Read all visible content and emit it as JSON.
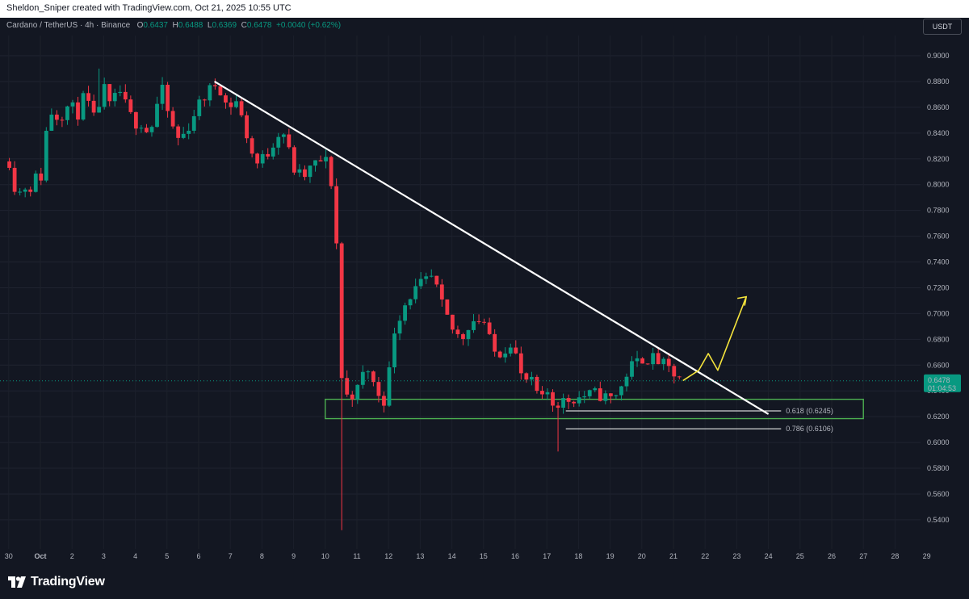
{
  "header": {
    "attribution": "Sheldon_Sniper created with TradingView.com, Oct 21, 2025 10:55 UTC"
  },
  "legend": {
    "symbol": "Cardano / TetherUS · 4h · Binance",
    "o_key": "O",
    "o_val": "0.6437",
    "h_key": "H",
    "h_val": "0.6488",
    "l_key": "L",
    "l_val": "0.6369",
    "c_key": "C",
    "c_val": "0.6478",
    "change": "+0.0040 (+0.62%)"
  },
  "currency_button": "USDT",
  "brand": "TradingView",
  "colors": {
    "up": "#089981",
    "down": "#f23645",
    "background": "#131722",
    "trendline": "#ffffff",
    "zone": "#4caf50",
    "arrow": "#f5e43c"
  },
  "chart_data": {
    "type": "candlestick",
    "title": "",
    "ylim": [
      0.53,
      0.915
    ],
    "y_ticks": [
      0.54,
      0.56,
      0.58,
      0.6,
      0.62,
      0.64,
      0.66,
      0.68,
      0.7,
      0.72,
      0.74,
      0.76,
      0.78,
      0.8,
      0.82,
      0.84,
      0.86,
      0.88,
      0.9
    ],
    "y_tick_labels": [
      "0.5400",
      "0.5600",
      "0.5800",
      "0.6000",
      "0.6200",
      "0.6400",
      "0.6600",
      "0.6800",
      "0.7000",
      "0.7200",
      "0.7400",
      "0.7600",
      "0.7800",
      "0.8000",
      "0.8200",
      "0.8400",
      "0.8600",
      "0.8800",
      "0.9000"
    ],
    "x_ticks": [
      {
        "label": "30",
        "day": -1.0
      },
      {
        "label": "Oct",
        "day": 0.0
      },
      {
        "label": "2",
        "day": 1.0
      },
      {
        "label": "3",
        "day": 2.0
      },
      {
        "label": "4",
        "day": 3.0
      },
      {
        "label": "5",
        "day": 4.0
      },
      {
        "label": "6",
        "day": 5.0
      },
      {
        "label": "7",
        "day": 6.0
      },
      {
        "label": "8",
        "day": 7.0
      },
      {
        "label": "9",
        "day": 8.0
      },
      {
        "label": "10",
        "day": 9.0
      },
      {
        "label": "11",
        "day": 10.0
      },
      {
        "label": "12",
        "day": 11.0
      },
      {
        "label": "13",
        "day": 12.0
      },
      {
        "label": "14",
        "day": 13.0
      },
      {
        "label": "15",
        "day": 14.0
      },
      {
        "label": "16",
        "day": 15.0
      },
      {
        "label": "17",
        "day": 16.0
      },
      {
        "label": "18",
        "day": 17.0
      },
      {
        "label": "19",
        "day": 18.0
      },
      {
        "label": "20",
        "day": 19.0
      },
      {
        "label": "21",
        "day": 20.0
      },
      {
        "label": "22",
        "day": 21.0
      },
      {
        "label": "23",
        "day": 22.0
      },
      {
        "label": "24",
        "day": 23.0
      },
      {
        "label": "25",
        "day": 24.0
      },
      {
        "label": "26",
        "day": 25.0
      },
      {
        "label": "27",
        "day": 26.0
      },
      {
        "label": "28",
        "day": 27.0
      },
      {
        "label": "29",
        "day": 28.0
      }
    ],
    "price_keypoints": [
      [
        -0.98,
        0.818
      ],
      [
        -0.85,
        0.8
      ],
      [
        -0.6,
        0.793
      ],
      [
        -0.4,
        0.802
      ],
      [
        -0.25,
        0.795
      ],
      [
        -0.1,
        0.81
      ],
      [
        0.05,
        0.805
      ],
      [
        0.25,
        0.858
      ],
      [
        0.6,
        0.852
      ],
      [
        0.9,
        0.862
      ],
      [
        1.2,
        0.855
      ],
      [
        1.4,
        0.87
      ],
      [
        1.7,
        0.85
      ],
      [
        2.0,
        0.875
      ],
      [
        2.2,
        0.86
      ],
      [
        2.5,
        0.873
      ],
      [
        2.8,
        0.855
      ],
      [
        3.0,
        0.848
      ],
      [
        3.2,
        0.848
      ],
      [
        3.4,
        0.84
      ],
      [
        3.6,
        0.85
      ],
      [
        3.8,
        0.878
      ],
      [
        4.0,
        0.858
      ],
      [
        4.3,
        0.835
      ],
      [
        4.6,
        0.84
      ],
      [
        4.9,
        0.858
      ],
      [
        5.3,
        0.872
      ],
      [
        5.6,
        0.88
      ],
      [
        5.9,
        0.86
      ],
      [
        6.2,
        0.865
      ],
      [
        6.5,
        0.84
      ],
      [
        6.8,
        0.815
      ],
      [
        7.2,
        0.825
      ],
      [
        7.5,
        0.84
      ],
      [
        7.7,
        0.84
      ],
      [
        8.0,
        0.812
      ],
      [
        8.3,
        0.805
      ],
      [
        8.6,
        0.815
      ],
      [
        9.0,
        0.82
      ],
      [
        9.2,
        0.8
      ],
      [
        9.35,
        0.757
      ],
      [
        9.5,
        0.652
      ],
      [
        9.7,
        0.635
      ],
      [
        10.0,
        0.64
      ],
      [
        10.3,
        0.66
      ],
      [
        10.6,
        0.64
      ],
      [
        10.9,
        0.632
      ],
      [
        11.2,
        0.69
      ],
      [
        11.6,
        0.712
      ],
      [
        12.0,
        0.722
      ],
      [
        12.4,
        0.728
      ],
      [
        12.7,
        0.705
      ],
      [
        13.0,
        0.688
      ],
      [
        13.3,
        0.68
      ],
      [
        13.6,
        0.695
      ],
      [
        14.0,
        0.695
      ],
      [
        14.3,
        0.67
      ],
      [
        14.6,
        0.67
      ],
      [
        14.9,
        0.68
      ],
      [
        15.2,
        0.65
      ],
      [
        15.6,
        0.645
      ],
      [
        15.8,
        0.63
      ],
      [
        16.0,
        0.64
      ],
      [
        16.2,
        0.63
      ],
      [
        16.5,
        0.632
      ],
      [
        17.0,
        0.635
      ],
      [
        17.5,
        0.638
      ],
      [
        18.0,
        0.634
      ],
      [
        18.3,
        0.64
      ],
      [
        18.6,
        0.658
      ],
      [
        19.0,
        0.665
      ],
      [
        19.4,
        0.665
      ],
      [
        19.8,
        0.658
      ],
      [
        20.1,
        0.65
      ],
      [
        20.3,
        0.648
      ]
    ],
    "last_price": "0.6478",
    "countdown": "01:04:53",
    "annotations": {
      "trendline": {
        "from": [
          5.5,
          0.88
        ],
        "to": [
          23.0,
          0.622
        ]
      },
      "support_zone": {
        "x0": 9.0,
        "x1": 26.0,
        "y0": 0.6185,
        "y1": 0.6335
      },
      "fib_levels": [
        {
          "label": "0.618 (0.6245)",
          "value": 0.6245,
          "x0": 16.6,
          "x1": 23.4
        },
        {
          "label": "0.786 (0.6106)",
          "value": 0.6106,
          "x0": 16.6,
          "x1": 23.4
        }
      ],
      "projection_arrow": [
        [
          20.3,
          0.648
        ],
        [
          20.8,
          0.656
        ],
        [
          21.1,
          0.669
        ],
        [
          21.4,
          0.656
        ],
        [
          22.3,
          0.713
        ]
      ]
    }
  }
}
